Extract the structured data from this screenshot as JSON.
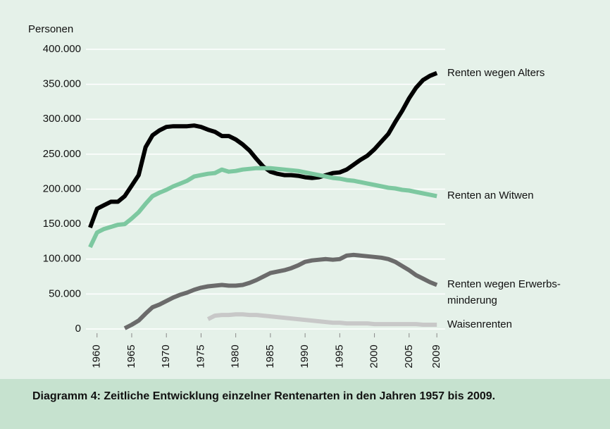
{
  "chart_data": {
    "type": "line",
    "y_label": "Personen",
    "caption": "Diagramm 4:  Zeitliche Entwicklung einzelner Rentenarten in den Jahren 1957 bis 2009.",
    "x": [
      1959,
      1960,
      1961,
      1962,
      1963,
      1964,
      1965,
      1966,
      1967,
      1968,
      1969,
      1970,
      1971,
      1972,
      1973,
      1974,
      1975,
      1976,
      1977,
      1978,
      1979,
      1980,
      1981,
      1982,
      1983,
      1984,
      1985,
      1986,
      1987,
      1988,
      1989,
      1990,
      1991,
      1992,
      1993,
      1994,
      1995,
      1996,
      1997,
      1998,
      1999,
      2000,
      2001,
      2002,
      2003,
      2004,
      2005,
      2006,
      2007,
      2008,
      2009
    ],
    "series": [
      {
        "name": "Renten wegen Alters",
        "color": "#000000",
        "values": [
          145000,
          172000,
          177000,
          182000,
          182000,
          190000,
          205000,
          220000,
          260000,
          277000,
          284000,
          289000,
          290000,
          290000,
          290000,
          291000,
          289000,
          285000,
          282000,
          276000,
          276000,
          271000,
          264000,
          255000,
          243000,
          232000,
          225000,
          222000,
          220000,
          220000,
          219000,
          217000,
          216000,
          217000,
          220000,
          223000,
          224000,
          228000,
          235000,
          242000,
          248000,
          257000,
          268000,
          279000,
          296000,
          312000,
          330000,
          345000,
          356000,
          362000,
          366000
        ]
      },
      {
        "name": "Renten an Witwen",
        "color": "#7dc8a0",
        "values": [
          117000,
          138000,
          143000,
          146000,
          149000,
          150000,
          158000,
          167000,
          179000,
          190000,
          195000,
          199000,
          204000,
          208000,
          212000,
          218000,
          220000,
          222000,
          223000,
          228000,
          225000,
          226000,
          228000,
          229000,
          230000,
          230000,
          230000,
          229000,
          228000,
          227000,
          226000,
          224000,
          222000,
          220000,
          218000,
          216000,
          215000,
          213000,
          212000,
          210000,
          208000,
          206000,
          204000,
          202000,
          201000,
          199000,
          198000,
          196000,
          194000,
          192000,
          190000
        ]
      },
      {
        "name": "Renten wegen Erwerbs-\nminderung",
        "color": "#6b6b6b",
        "values": [
          null,
          null,
          null,
          null,
          null,
          1000,
          6000,
          12000,
          22000,
          31000,
          35000,
          40000,
          45000,
          49000,
          52000,
          56000,
          59000,
          61000,
          62000,
          63000,
          62000,
          62000,
          63000,
          66000,
          70000,
          75000,
          80000,
          82000,
          84000,
          87000,
          91000,
          96000,
          98000,
          99000,
          100000,
          99000,
          100000,
          105000,
          106000,
          105000,
          104000,
          103000,
          102000,
          100000,
          96000,
          90000,
          84000,
          77000,
          72000,
          67000,
          63000
        ]
      },
      {
        "name": "Waisenrenten",
        "color": "#c8c8c8",
        "values": [
          null,
          null,
          null,
          null,
          null,
          null,
          null,
          null,
          null,
          null,
          null,
          null,
          null,
          null,
          null,
          null,
          null,
          14000,
          19000,
          20000,
          20000,
          21000,
          21000,
          20000,
          20000,
          19000,
          18000,
          17000,
          16000,
          15000,
          14000,
          13000,
          12000,
          11000,
          10000,
          9000,
          9000,
          8000,
          8000,
          8000,
          8000,
          7000,
          7000,
          7000,
          7000,
          7000,
          7000,
          7000,
          6000,
          6000,
          6000
        ]
      }
    ],
    "xlim": [
      1958.4,
      2010.2
    ],
    "xticks": [
      1960,
      1965,
      1970,
      1975,
      1980,
      1985,
      1990,
      1995,
      2000,
      2005,
      2009
    ],
    "ylim": [
      0,
      400000
    ],
    "yticks": [
      0,
      {
        "value": 50000,
        "label": "50.000"
      },
      {
        "value": 100000,
        "label": "100.000"
      },
      {
        "value": 150000,
        "label": "150.000"
      },
      {
        "value": 200000,
        "label": "200.000"
      },
      {
        "value": 250000,
        "label": "250.000"
      },
      {
        "value": 300000,
        "label": "300.000"
      },
      {
        "value": 350000,
        "label": "350.000"
      },
      {
        "value": 400000,
        "label": "400.000"
      }
    ],
    "grid": true
  }
}
